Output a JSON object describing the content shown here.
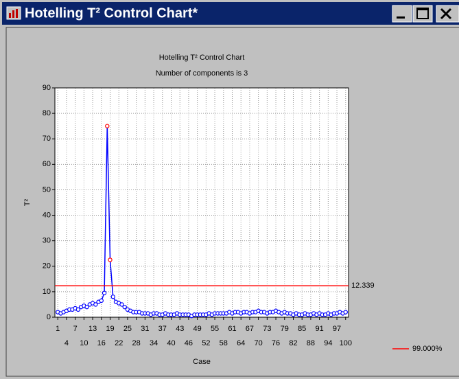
{
  "window": {
    "title": "Hotelling T² Control Chart*"
  },
  "chart_data": {
    "type": "line",
    "title": "Hotelling T² Control Chart",
    "subtitle": "Number of components is 3",
    "x_label": "Case",
    "y_label": "T²",
    "x": [
      1,
      2,
      3,
      4,
      5,
      6,
      7,
      8,
      9,
      10,
      11,
      12,
      13,
      14,
      15,
      16,
      17,
      18,
      19,
      20,
      21,
      22,
      23,
      24,
      25,
      26,
      27,
      28,
      29,
      30,
      31,
      32,
      33,
      34,
      35,
      36,
      37,
      38,
      39,
      40,
      41,
      42,
      43,
      44,
      45,
      46,
      47,
      48,
      49,
      50,
      51,
      52,
      53,
      54,
      55,
      56,
      57,
      58,
      59,
      60,
      61,
      62,
      63,
      64,
      65,
      66,
      67,
      68,
      69,
      70,
      71,
      72,
      73,
      74,
      75,
      76,
      77,
      78,
      79,
      80,
      81,
      82,
      83,
      84,
      85,
      86,
      87,
      88,
      89,
      90,
      91,
      92,
      93,
      94,
      95,
      96,
      97,
      98,
      99,
      100
    ],
    "values": [
      2,
      1.5,
      2,
      2.5,
      3,
      3,
      3.5,
      3,
      4,
      4.5,
      4,
      5,
      5.5,
      5,
      6,
      6.5,
      9.5,
      75,
      22.5,
      8,
      6,
      5.5,
      5,
      4,
      3,
      2.5,
      2,
      2,
      2,
      1.5,
      1.5,
      1.5,
      1,
      1.5,
      1.5,
      1,
      1,
      1.5,
      1,
      1,
      1,
      1.5,
      1,
      1,
      1,
      1,
      0.5,
      1,
      1,
      1,
      1,
      1,
      1.5,
      1,
      1.5,
      1.5,
      1.5,
      1.5,
      1.5,
      2,
      1.5,
      2,
      2,
      1.5,
      2,
      2,
      1.5,
      2,
      2,
      2.5,
      2,
      2,
      1.5,
      2,
      2,
      2.5,
      2,
      1.5,
      2,
      1.5,
      1.5,
      1,
      1.5,
      1,
      1,
      1.5,
      1,
      1,
      1.5,
      1,
      1.5,
      1,
      1,
      1.5,
      1,
      1.5,
      1.5,
      2,
      1.5,
      2
    ],
    "color": "#0000ff",
    "highlight_color": "#ff0000",
    "control_limit": {
      "name": "99.000%",
      "value": 12.339,
      "color": "#ff0000"
    },
    "xlim": [
      0,
      101
    ],
    "ylim": [
      0,
      90
    ],
    "xticks": [
      1,
      4,
      7,
      10,
      13,
      16,
      19,
      22,
      25,
      28,
      31,
      34,
      37,
      40,
      43,
      46,
      49,
      52,
      55,
      58,
      61,
      64,
      67,
      70,
      73,
      76,
      79,
      82,
      85,
      88,
      91,
      94,
      97,
      100
    ],
    "yticks": [
      0,
      10,
      20,
      30,
      40,
      50,
      60,
      70,
      80,
      90
    ],
    "grid": true
  }
}
